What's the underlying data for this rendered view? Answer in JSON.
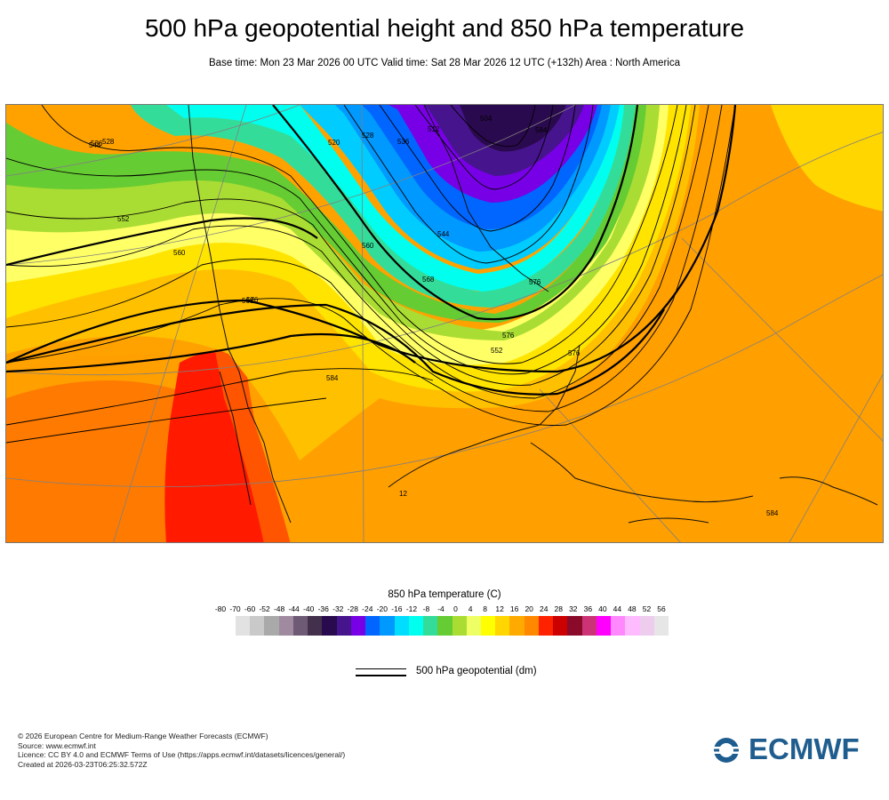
{
  "header": {
    "title": "500 hPa geopotential height and 850 hPa temperature",
    "subtitle": "Base time: Mon 23 Mar 2026 00 UTC Valid time: Sat 28 Mar 2026 12 UTC (+132h) Area : North America"
  },
  "map": {
    "contour_labels": [
      "528",
      "536",
      "544",
      "552",
      "560",
      "568",
      "576",
      "584",
      "552",
      "576",
      "560",
      "568",
      "544",
      "536",
      "528",
      "520",
      "512",
      "504",
      "584",
      "576",
      "12",
      "576",
      "584"
    ]
  },
  "legend": {
    "title": "850 hPa temperature (C)",
    "ticks": [
      "-80",
      "-70",
      "-60",
      "-52",
      "-48",
      "-44",
      "-40",
      "-36",
      "-32",
      "-28",
      "-24",
      "-20",
      "-16",
      "-12",
      "-8",
      "-4",
      "0",
      "4",
      "8",
      "12",
      "16",
      "20",
      "24",
      "28",
      "32",
      "36",
      "40",
      "44",
      "48",
      "52",
      "56"
    ],
    "colors": [
      "#e2e2e2",
      "#c9c9c9",
      "#a9a9a9",
      "#a08aa0",
      "#6e5a74",
      "#43304c",
      "#2a0a4e",
      "#46148c",
      "#7800e6",
      "#0066ff",
      "#0099ff",
      "#00ddff",
      "#00ffee",
      "#33dd99",
      "#66cc33",
      "#aadd33",
      "#eeff66",
      "#ffff00",
      "#ffd600",
      "#ffaa00",
      "#ff8800",
      "#ff2200",
      "#cc0000",
      "#8a0a2a",
      "#cc3377",
      "#ff00ff",
      "#ff88ff",
      "#ffbbff",
      "#eeccee",
      "#e6e6e6"
    ],
    "geopotential_label": "500 hPa geopotential (dm)"
  },
  "footer": {
    "lines": [
      "© 2026 European Centre for Medium-Range Weather Forecasts (ECMWF)",
      "Source: www.ecmwf.int",
      "Licence: CC BY 4.0 and ECMWF Terms of Use (https://apps.ecmwf.int/datasets/licences/general/)",
      "Created at 2026-03-23T06:25:32.572Z"
    ],
    "logo_text": "ECMWF",
    "logo_color": "#1f5d8f"
  }
}
